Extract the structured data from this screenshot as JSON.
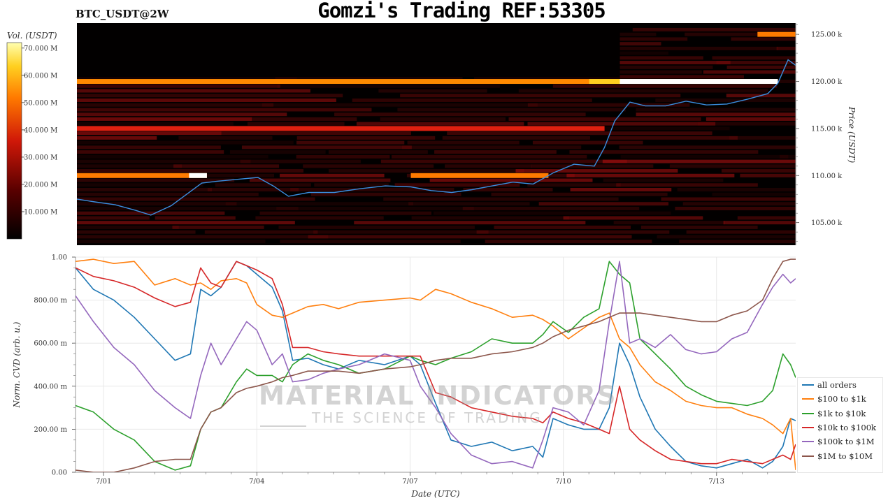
{
  "header": {
    "title": "Gomzi's Trading REF:53305",
    "pair": "BTC_USDT@2W"
  },
  "legend": {
    "items": [
      {
        "label": "all orders",
        "color": "#1f77b4"
      },
      {
        "label": "$100 to $1k",
        "color": "#ff7f0e"
      },
      {
        "label": "$1k to $10k",
        "color": "#2ca02c"
      },
      {
        "label": "$10k to $100k",
        "color": "#d62728"
      },
      {
        "label": "$100k to $1M",
        "color": "#9467bd"
      },
      {
        "label": "$1M to $10M",
        "color": "#8c564b"
      }
    ]
  },
  "watermark": {
    "main": "MATERIAL INDICATORS",
    "sub": "THE SCIENCE OF TRADING"
  },
  "chart_data": [
    {
      "type": "heatmap",
      "title": "BTC_USDT@2W",
      "ylabel": "Price (USDT)",
      "colorbar_label": "Vol. (USDT)",
      "colorbar_ticks": [
        "10.000 M",
        "20.000 M",
        "30.000 M",
        "40.000 M",
        "50.000 M",
        "60.000 M",
        "70.000 M"
      ],
      "colorbar_range": [
        0,
        72
      ],
      "y_ticks": [
        "105.00 k",
        "110.00 k",
        "115.00 k",
        "120.00 k",
        "125.00 k"
      ],
      "y_tick_values": [
        105000,
        110000,
        115000,
        120000,
        125000
      ],
      "ylim": [
        102600,
        126200
      ],
      "x_range_days": [
        0.45,
        14.55
      ],
      "walls": [
        {
          "price": 120000,
          "from_day": 0.45,
          "to_day": 14.2,
          "intensity": "very high"
        },
        {
          "price": 110000,
          "from_day": 0.45,
          "to_day": 3.0,
          "intensity": "high"
        },
        {
          "price": 110000,
          "from_day": 7.0,
          "to_day": 9.7,
          "intensity": "high"
        },
        {
          "price": 115000,
          "from_day": 0.45,
          "to_day": 10.8,
          "intensity": "medium"
        },
        {
          "price": 125000,
          "from_day": 13.8,
          "to_day": 14.55,
          "intensity": "high"
        }
      ],
      "price_series": {
        "name": "Price",
        "days": [
          0.45,
          0.8,
          1.2,
          1.6,
          1.9,
          2.3,
          2.6,
          2.9,
          3.2,
          3.6,
          4.0,
          4.3,
          4.6,
          5.0,
          5.5,
          6.0,
          6.5,
          7.0,
          7.4,
          7.8,
          8.2,
          8.6,
          9.0,
          9.4,
          9.8,
          10.2,
          10.6,
          10.8,
          11.0,
          11.3,
          11.6,
          12.0,
          12.4,
          12.8,
          13.2,
          13.6,
          14.0,
          14.2,
          14.4,
          14.55
        ],
        "prices": [
          107500,
          107200,
          106900,
          106300,
          105800,
          106800,
          108000,
          109200,
          109400,
          109600,
          109800,
          108900,
          107800,
          108200,
          108200,
          108600,
          108900,
          108800,
          108400,
          108200,
          108500,
          108900,
          109300,
          109100,
          110300,
          111200,
          111000,
          113000,
          115800,
          117800,
          117400,
          117400,
          117900,
          117500,
          117600,
          118100,
          118700,
          119800,
          122300,
          121700
        ]
      }
    },
    {
      "type": "line",
      "xlabel": "Date (UTC)",
      "ylabel": "Norm. CVD (arb. u.)",
      "ylim": [
        0,
        1
      ],
      "y_ticks": [
        "0.00",
        "200.00 m",
        "400.00 m",
        "600.00 m",
        "800.00 m",
        "1.00"
      ],
      "y_tick_values": [
        0,
        0.2,
        0.4,
        0.6,
        0.8,
        1.0
      ],
      "x_tick_labels": [
        "7/01",
        "7/04",
        "7/07",
        "7/10",
        "7/13"
      ],
      "x_tick_days": [
        1,
        4,
        7,
        10,
        13
      ],
      "x_range_days": [
        0.45,
        14.55
      ],
      "x": [
        0.45,
        0.8,
        1.2,
        1.6,
        2.0,
        2.4,
        2.7,
        2.9,
        3.1,
        3.3,
        3.6,
        3.8,
        4.0,
        4.3,
        4.5,
        4.7,
        5.0,
        5.3,
        5.6,
        6.0,
        6.5,
        7.0,
        7.2,
        7.5,
        7.8,
        8.2,
        8.6,
        9.0,
        9.4,
        9.6,
        9.8,
        10.1,
        10.4,
        10.7,
        10.9,
        11.1,
        11.3,
        11.5,
        11.8,
        12.1,
        12.4,
        12.7,
        13.0,
        13.3,
        13.6,
        13.9,
        14.1,
        14.3,
        14.45,
        14.55
      ],
      "series": [
        {
          "name": "all orders",
          "color": "#1f77b4",
          "values": [
            0.95,
            0.85,
            0.8,
            0.72,
            0.62,
            0.52,
            0.55,
            0.85,
            0.82,
            0.86,
            0.98,
            0.96,
            0.92,
            0.86,
            0.75,
            0.52,
            0.53,
            0.5,
            0.48,
            0.52,
            0.5,
            0.54,
            0.5,
            0.32,
            0.15,
            0.12,
            0.14,
            0.1,
            0.12,
            0.07,
            0.25,
            0.22,
            0.2,
            0.2,
            0.3,
            0.6,
            0.5,
            0.35,
            0.2,
            0.12,
            0.05,
            0.03,
            0.02,
            0.04,
            0.06,
            0.02,
            0.05,
            0.12,
            0.25,
            0.24
          ]
        },
        {
          "name": "$100 to $1k",
          "color": "#ff7f0e",
          "values": [
            0.98,
            0.99,
            0.97,
            0.98,
            0.87,
            0.9,
            0.87,
            0.88,
            0.85,
            0.89,
            0.9,
            0.88,
            0.78,
            0.73,
            0.72,
            0.74,
            0.77,
            0.78,
            0.76,
            0.79,
            0.8,
            0.81,
            0.8,
            0.85,
            0.83,
            0.79,
            0.76,
            0.72,
            0.73,
            0.71,
            0.68,
            0.62,
            0.67,
            0.72,
            0.74,
            0.62,
            0.58,
            0.5,
            0.42,
            0.38,
            0.33,
            0.31,
            0.3,
            0.3,
            0.27,
            0.25,
            0.22,
            0.18,
            0.25,
            0.01
          ]
        },
        {
          "name": "$1k to $10k",
          "color": "#2ca02c",
          "values": [
            0.31,
            0.28,
            0.2,
            0.15,
            0.05,
            0.01,
            0.03,
            0.2,
            0.28,
            0.3,
            0.42,
            0.48,
            0.45,
            0.45,
            0.42,
            0.5,
            0.55,
            0.52,
            0.5,
            0.46,
            0.48,
            0.54,
            0.52,
            0.5,
            0.53,
            0.56,
            0.62,
            0.6,
            0.6,
            0.64,
            0.7,
            0.65,
            0.72,
            0.76,
            0.98,
            0.92,
            0.88,
            0.62,
            0.55,
            0.48,
            0.4,
            0.36,
            0.33,
            0.32,
            0.31,
            0.33,
            0.38,
            0.55,
            0.5,
            0.44
          ]
        },
        {
          "name": "$10k to $100k",
          "color": "#d62728",
          "values": [
            0.95,
            0.91,
            0.89,
            0.86,
            0.81,
            0.77,
            0.79,
            0.95,
            0.88,
            0.86,
            0.98,
            0.96,
            0.94,
            0.9,
            0.78,
            0.58,
            0.58,
            0.56,
            0.55,
            0.54,
            0.54,
            0.54,
            0.54,
            0.37,
            0.35,
            0.3,
            0.28,
            0.26,
            0.25,
            0.23,
            0.28,
            0.25,
            0.23,
            0.2,
            0.18,
            0.4,
            0.2,
            0.15,
            0.1,
            0.06,
            0.05,
            0.04,
            0.04,
            0.06,
            0.05,
            0.04,
            0.06,
            0.08,
            0.06,
            0.13
          ]
        },
        {
          "name": "$100k to $1M",
          "color": "#9467bd",
          "values": [
            0.82,
            0.7,
            0.58,
            0.5,
            0.38,
            0.3,
            0.25,
            0.45,
            0.6,
            0.5,
            0.62,
            0.7,
            0.66,
            0.5,
            0.55,
            0.42,
            0.43,
            0.46,
            0.48,
            0.5,
            0.55,
            0.52,
            0.4,
            0.3,
            0.18,
            0.08,
            0.04,
            0.05,
            0.02,
            0.15,
            0.3,
            0.28,
            0.22,
            0.38,
            0.7,
            0.98,
            0.6,
            0.62,
            0.58,
            0.64,
            0.57,
            0.55,
            0.56,
            0.62,
            0.65,
            0.78,
            0.86,
            0.92,
            0.88,
            0.9
          ]
        },
        {
          "name": "$1M to $10M",
          "color": "#8c564b",
          "values": [
            0.01,
            0.0,
            0.0,
            0.02,
            0.05,
            0.06,
            0.06,
            0.2,
            0.28,
            0.3,
            0.37,
            0.39,
            0.4,
            0.42,
            0.44,
            0.45,
            0.47,
            0.47,
            0.47,
            0.46,
            0.48,
            0.49,
            0.5,
            0.52,
            0.53,
            0.53,
            0.55,
            0.56,
            0.58,
            0.6,
            0.63,
            0.66,
            0.68,
            0.7,
            0.72,
            0.74,
            0.74,
            0.74,
            0.73,
            0.72,
            0.71,
            0.7,
            0.7,
            0.73,
            0.75,
            0.8,
            0.9,
            0.98,
            0.99,
            0.99
          ]
        }
      ]
    }
  ]
}
